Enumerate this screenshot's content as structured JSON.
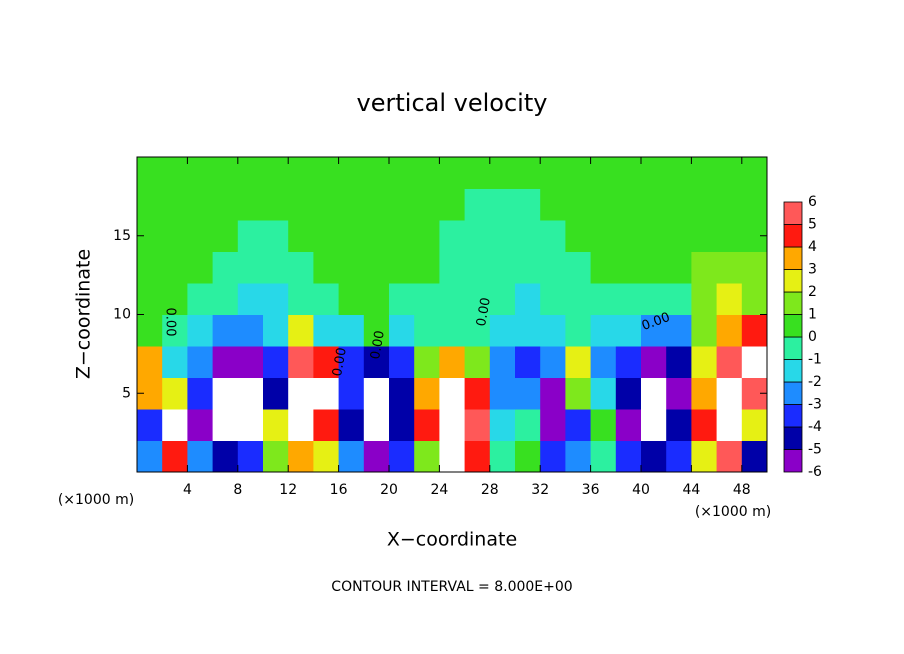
{
  "chart_data": {
    "type": "heatmap",
    "title": "vertical velocity",
    "xlabel": "X−coordinate",
    "ylabel": "Z−coordinate",
    "x_unit_label": "(×1000 m)",
    "footer": "CONTOUR INTERVAL = 8.000E+00",
    "contour_label": "0.00",
    "xlim": [
      0,
      50
    ],
    "ylim": [
      0,
      20
    ],
    "xticks": [
      4,
      8,
      12,
      16,
      20,
      24,
      28,
      32,
      36,
      40,
      44,
      48
    ],
    "yticks": [
      5,
      10,
      15
    ],
    "x": [
      1,
      3,
      5,
      7,
      9,
      11,
      13,
      15,
      17,
      19,
      21,
      23,
      25,
      27,
      29,
      31,
      33,
      35,
      37,
      39,
      41,
      43,
      45,
      47,
      49
    ],
    "y": [
      1,
      3,
      5,
      7,
      9,
      11,
      13,
      15,
      17,
      19
    ],
    "z": [
      [
        -2,
        5,
        -2,
        -4,
        -3,
        2,
        4,
        3,
        -2,
        -5,
        -3,
        2,
        7,
        5,
        0,
        0.5,
        -3,
        -2,
        0,
        -3,
        -4,
        -3,
        3,
        6,
        -4
      ],
      [
        -3,
        7,
        -5,
        -7,
        -7,
        3,
        7,
        5,
        -4,
        -7,
        -4,
        5,
        8,
        6,
        -1,
        0,
        -6,
        -3,
        1,
        -5,
        -7,
        -4,
        5,
        7,
        3
      ],
      [
        4,
        3,
        -3,
        -7,
        -7,
        -4,
        7,
        7,
        -3,
        -7,
        -4,
        4,
        7,
        5,
        -2,
        -2,
        -5,
        2,
        -1,
        -4,
        -7,
        -5,
        4,
        7,
        6
      ],
      [
        4,
        -1,
        -2,
        -5,
        -6,
        -3,
        6,
        5,
        -3,
        -4,
        -3,
        2,
        4,
        2,
        -2,
        -3,
        -2,
        3,
        -2,
        -3,
        -5,
        -4,
        3,
        6,
        7
      ],
      [
        1,
        -0.5,
        -1,
        -2,
        -2,
        -1.5,
        3,
        -1,
        -1,
        1,
        -1,
        0,
        0,
        -0.5,
        -1,
        -1.5,
        -1,
        -0.5,
        -1,
        -1.5,
        -2,
        -2,
        2,
        4,
        5
      ],
      [
        0.5,
        0.3,
        0,
        -0.5,
        -1,
        -1,
        -0.5,
        0,
        1,
        1,
        0,
        0,
        -0.5,
        -0.5,
        -0.5,
        -1,
        -0.5,
        -0.5,
        -0.3,
        -0.5,
        -0.5,
        0,
        2,
        3,
        2
      ],
      [
        0.5,
        0.5,
        0.3,
        0,
        -0.5,
        -0.5,
        0,
        0.3,
        1,
        1,
        0.5,
        0.3,
        0,
        -0.3,
        -0.5,
        -0.5,
        -0.3,
        0,
        0.3,
        0.5,
        0.5,
        1,
        2,
        2,
        1.5
      ],
      [
        0.5,
        0.5,
        0.5,
        0.3,
        0,
        0,
        0.3,
        0.3,
        0.5,
        0.5,
        0.3,
        0.3,
        0,
        0,
        0,
        0,
        0,
        0.3,
        0.3,
        0.5,
        0.5,
        1,
        1,
        1,
        1
      ],
      [
        0.5,
        0.5,
        0.5,
        0.3,
        0.3,
        0.3,
        0.3,
        0.3,
        0.5,
        0.5,
        0.3,
        0.3,
        0.3,
        0,
        0,
        0,
        0.3,
        0.3,
        0.3,
        0.5,
        0.5,
        0.5,
        1,
        1,
        1
      ],
      [
        0.5,
        0.5,
        0.5,
        0.5,
        0.5,
        0.5,
        0.5,
        0.5,
        0.5,
        0.5,
        0.5,
        0.5,
        0.5,
        0.5,
        0.5,
        0.5,
        0.5,
        0.5,
        0.5,
        0.5,
        0.5,
        0.5,
        0.5,
        0.5,
        0.5
      ]
    ],
    "levels": [
      -6,
      -5,
      -4,
      -3,
      -2,
      -1,
      0,
      1,
      2,
      3,
      4,
      5,
      6
    ],
    "colors": [
      "#8a00c8",
      "#0000a8",
      "#1a2cff",
      "#1e8cff",
      "#28d8e8",
      "#2cf0a0",
      "#38e020",
      "#7ee81c",
      "#e6f014",
      "#ffa800",
      "#ff1a10",
      "#ff5858",
      "#f4a8a8"
    ],
    "outside_color": "#ffffff"
  }
}
